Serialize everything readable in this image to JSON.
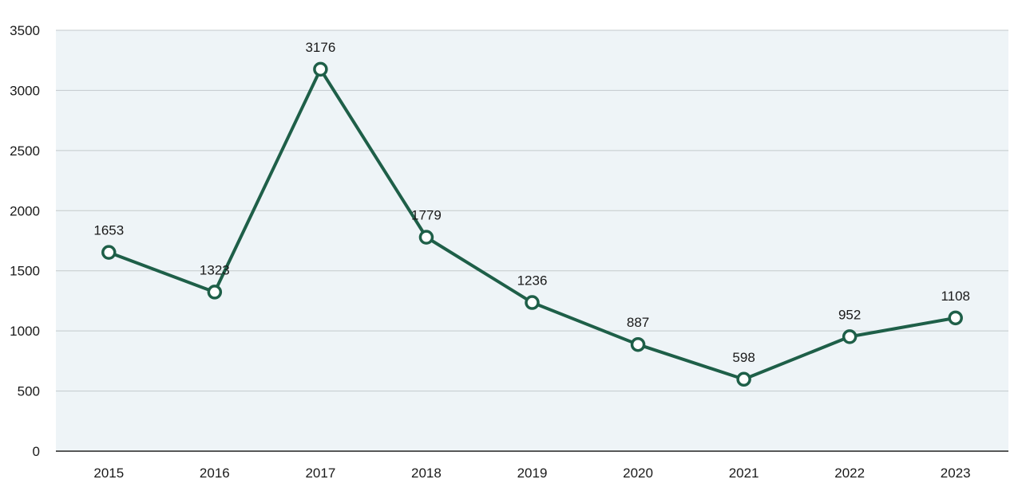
{
  "chart_data": {
    "type": "line",
    "title": "",
    "xlabel": "",
    "ylabel": "",
    "categories": [
      "2015",
      "2016",
      "2017",
      "2018",
      "2019",
      "2020",
      "2021",
      "2022",
      "2023"
    ],
    "series": [
      {
        "values": [
          1653,
          1323,
          3176,
          1779,
          1236,
          887,
          598,
          952,
          1108
        ]
      }
    ],
    "ylim": [
      0,
      3500
    ],
    "yticks": [
      0,
      500,
      1000,
      1500,
      2000,
      2500,
      3000,
      3500
    ],
    "grid": true,
    "legend": "none",
    "data_labels": true,
    "colors": {
      "line": "#1e5f48",
      "plot_background": "#eef4f7",
      "gridline": "#c3c9cc",
      "axis": "#222222",
      "marker_fill": "#ffffff"
    }
  }
}
